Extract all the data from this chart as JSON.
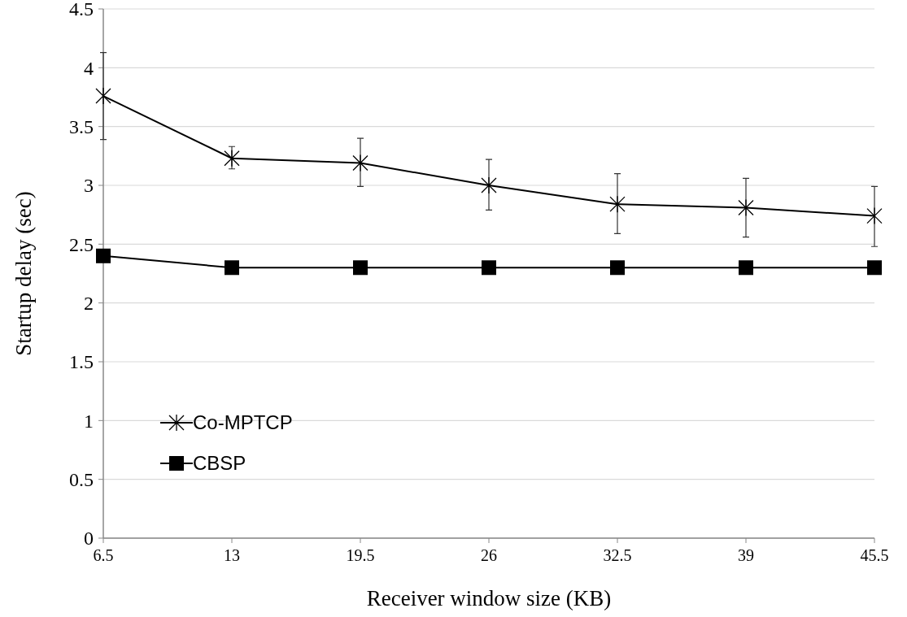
{
  "chart_data": {
    "type": "line",
    "xlabel": "Receiver window size (KB)",
    "ylabel": "Startup delay (sec)",
    "categories": [
      "6.5",
      "13",
      "19.5",
      "26",
      "32.5",
      "39",
      "45.5"
    ],
    "ylim": [
      0,
      4.5
    ],
    "yticks": [
      0,
      0.5,
      1,
      1.5,
      2,
      2.5,
      3,
      3.5,
      4,
      4.5
    ],
    "grid": "y",
    "legend": "bottom left",
    "series": [
      {
        "name": "Co-MPTCP",
        "color": "#000000",
        "marker": "cross",
        "values": [
          3.76,
          3.23,
          3.19,
          3.0,
          2.84,
          2.81,
          2.74
        ],
        "errors": [
          [
            3.39,
            4.13
          ],
          [
            3.14,
            3.33
          ],
          [
            2.99,
            3.4
          ],
          [
            2.79,
            3.22
          ],
          [
            2.59,
            3.1
          ],
          [
            2.56,
            3.06
          ],
          [
            2.48,
            2.99
          ]
        ]
      },
      {
        "name": "CBSP",
        "color": "#000000",
        "marker": "square",
        "values": [
          2.4,
          2.3,
          2.3,
          2.3,
          2.3,
          2.3,
          2.3
        ]
      }
    ]
  }
}
